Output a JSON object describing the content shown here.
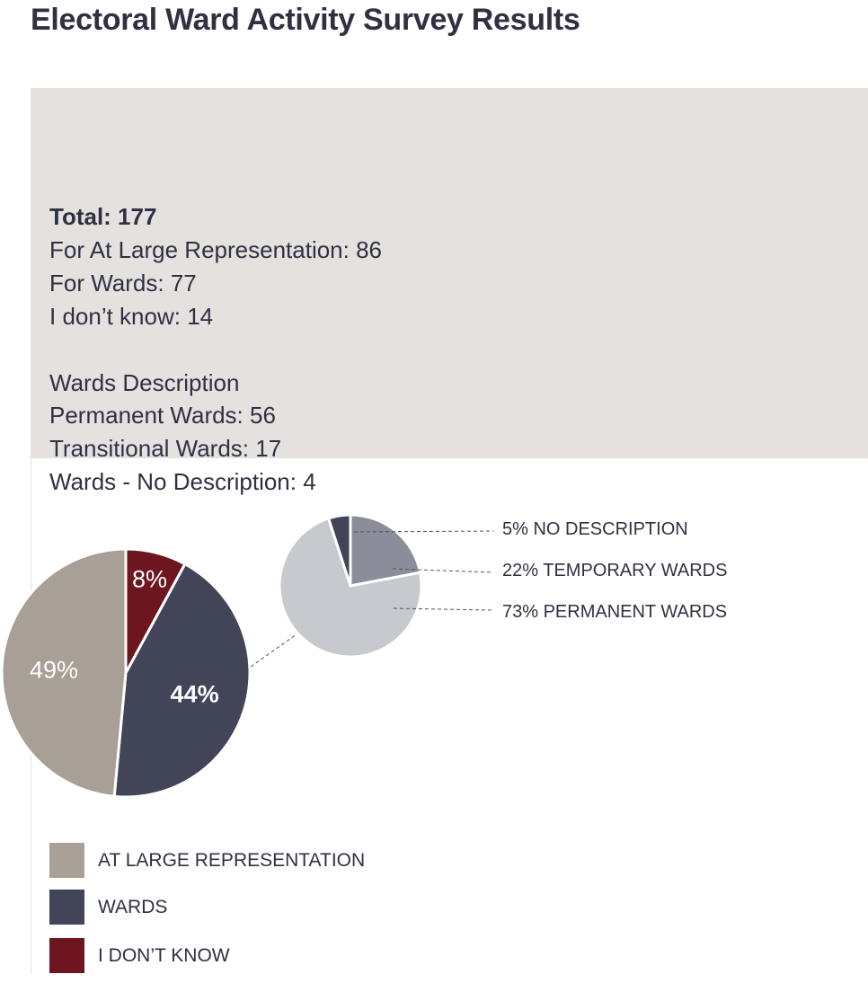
{
  "title": "Electoral Ward Activity Survey Results",
  "summary": {
    "total": "Total: 177",
    "at_large": "For At Large Representation: 86",
    "wards": "For Wards: 77",
    "dont_know": "I don’t know: 14",
    "wards_heading": "Wards Description",
    "permanent": "Permanent Wards: 56",
    "transitional": "Transitional Wards: 17",
    "no_description": "Wards - No Description: 4"
  },
  "chart_data": [
    {
      "type": "pie",
      "slices": [
        {
          "label": "I DON’T KNOW",
          "value": 8,
          "display": "8%",
          "color": "#6e1620",
          "text_color": "#ffffff",
          "bold": false
        },
        {
          "label": "WARDS",
          "value": 44,
          "display": "44%",
          "color": "#424457",
          "text_color": "#ffffff",
          "bold": true
        },
        {
          "label": "AT LARGE REPRESENTATION",
          "value": 49,
          "display": "49%",
          "color": "#a89f97",
          "text_color": "#ffffff",
          "bold": false
        }
      ]
    },
    {
      "type": "pie",
      "slices": [
        {
          "label": "22% TEMPORARY WARDS",
          "value": 22,
          "color": "#8b8d9a"
        },
        {
          "label": "73% PERMANENT WARDS",
          "value": 73,
          "color": "#c8c9cf"
        },
        {
          "label": "5% NO DESCRIPTION",
          "value": 5,
          "color": "#424457"
        }
      ]
    }
  ],
  "legend": [
    {
      "label": "AT LARGE REPRESENTATION",
      "color": "#a89f97"
    },
    {
      "label": "WARDS",
      "color": "#424457"
    },
    {
      "label": "I DON’T KNOW",
      "color": "#6e1620"
    }
  ]
}
